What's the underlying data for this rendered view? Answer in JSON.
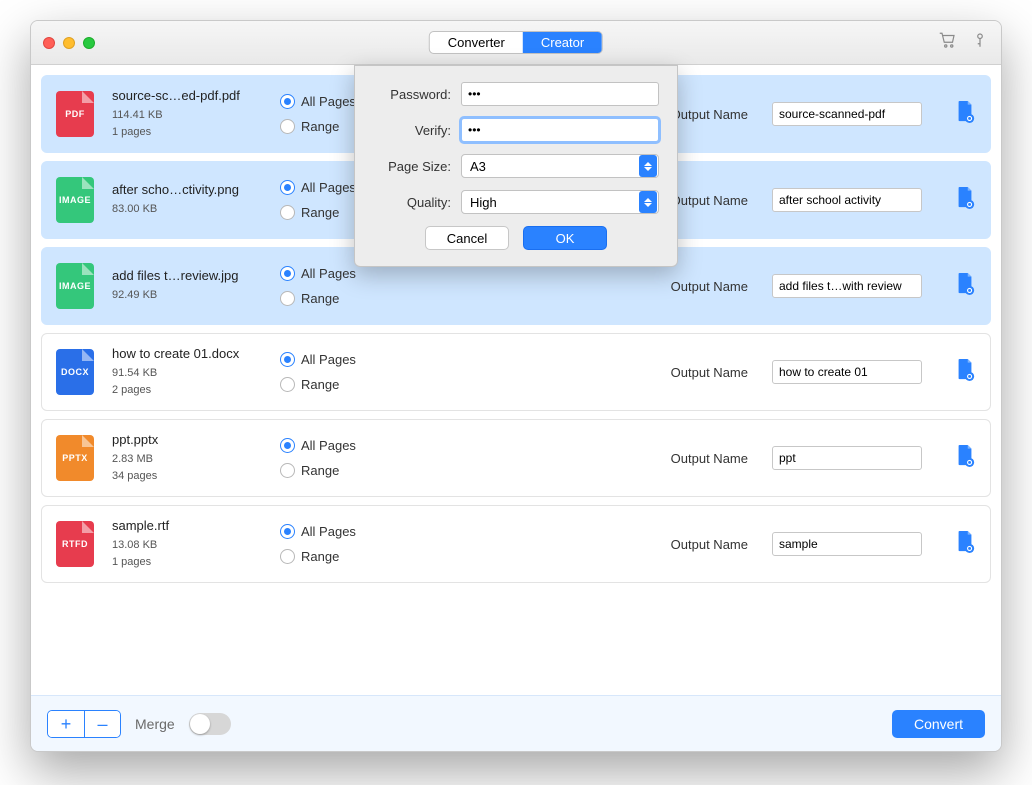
{
  "titlebar": {
    "tabs": {
      "converter": "Converter",
      "creator": "Creator",
      "active": "creator"
    }
  },
  "files": [
    {
      "type": "PDF",
      "type_color": "#e73c4e",
      "name": "source-sc…ed-pdf.pdf",
      "size": "114.41 KB",
      "pages": "1 pages",
      "selected": true,
      "all_pages": true,
      "output": "source-scanned-pdf"
    },
    {
      "type": "IMAGE",
      "type_color": "#34c77b",
      "name": "after scho…ctivity.png",
      "size": "83.00 KB",
      "pages": "",
      "selected": true,
      "all_pages": true,
      "output": "after school activity"
    },
    {
      "type": "IMAGE",
      "type_color": "#34c77b",
      "name": "add files t…review.jpg",
      "size": "92.49 KB",
      "pages": "",
      "selected": true,
      "all_pages": true,
      "output": "add files t…with review"
    },
    {
      "type": "DOCX",
      "type_color": "#2a6fe8",
      "name": "how to create 01.docx",
      "size": "91.54 KB",
      "pages": "2 pages",
      "selected": false,
      "all_pages": true,
      "output": "how to create 01"
    },
    {
      "type": "PPTX",
      "type_color": "#f18a2b",
      "name": "ppt.pptx",
      "size": "2.83 MB",
      "pages": "34 pages",
      "selected": false,
      "all_pages": true,
      "output": "ppt"
    },
    {
      "type": "RTFD",
      "type_color": "#e73c4e",
      "name": "sample.rtf",
      "size": "13.08 KB",
      "pages": "1 pages",
      "selected": false,
      "all_pages": true,
      "output": "sample"
    }
  ],
  "labels": {
    "all_pages": "All Pages",
    "range": "Range",
    "output_name": "Output Name",
    "merge": "Merge",
    "convert": "Convert",
    "add": "+",
    "remove": "–"
  },
  "modal": {
    "password_label": "Password:",
    "verify_label": "Verify:",
    "page_size_label": "Page Size:",
    "quality_label": "Quality:",
    "password_value": "•••",
    "verify_value": "•••",
    "page_size_value": "A3",
    "quality_value": "High",
    "cancel": "Cancel",
    "ok": "OK"
  },
  "colors": {
    "accent": "#2a82ff",
    "row_selected_bg": "#cfe6ff",
    "footer_bg": "#f2f8ff"
  }
}
